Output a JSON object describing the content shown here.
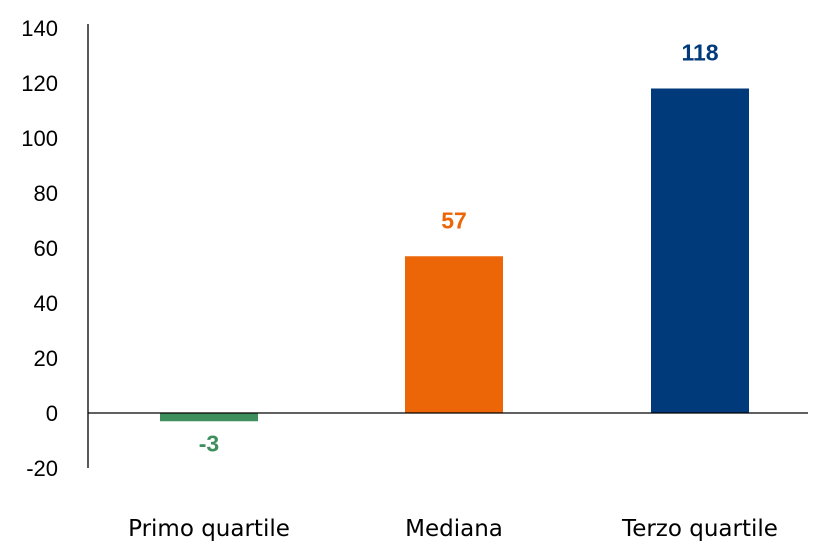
{
  "chart_data": {
    "type": "bar",
    "title": "",
    "xlabel": "",
    "ylabel": "",
    "categories": [
      "Primo quartile",
      "Mediana",
      "Terzo quartile"
    ],
    "values": [
      -3,
      57,
      118
    ],
    "value_labels": [
      "-3",
      "57",
      "118"
    ],
    "colors": [
      "#3f8f5e",
      "#ec6608",
      "#003a7a"
    ],
    "ylim": [
      -20,
      140
    ],
    "yticks": [
      -20,
      0,
      20,
      40,
      60,
      80,
      100,
      120,
      140
    ],
    "ytick_labels": [
      "-20",
      "0",
      "20",
      "40",
      "60",
      "80",
      "100",
      "120",
      "140"
    ],
    "grid": false,
    "legend": false
  }
}
